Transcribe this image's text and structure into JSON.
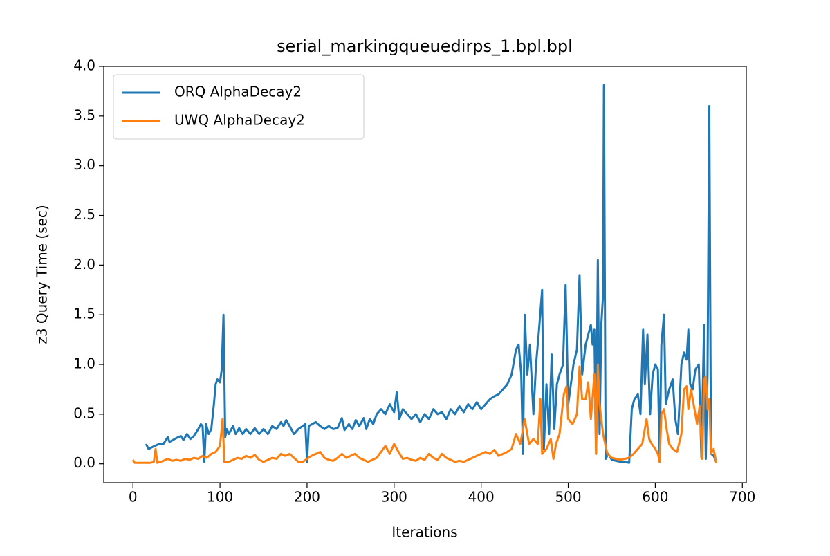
{
  "chart_data": {
    "type": "line",
    "title": "serial_markingqueuedirps_1.bpl.bpl",
    "x_label": "Iterations",
    "y_label": "z3 Query Time (sec)",
    "xlim": [
      -33.55,
      704.55
    ],
    "ylim": [
      -0.19,
      4.0
    ],
    "xticks": [
      0,
      100,
      200,
      300,
      400,
      500,
      600,
      700
    ],
    "yticks": [
      {
        "value": 0,
        "label": "0.0"
      },
      0.5,
      {
        "value": 1,
        "label": "1.0"
      },
      1.5,
      {
        "value": 2,
        "label": "2.0"
      },
      2.5,
      {
        "value": 3,
        "label": "3.0"
      },
      3.5,
      {
        "value": 4,
        "label": "4.0"
      }
    ],
    "legend": "upper left",
    "series": [
      {
        "name": "ORQ AlphaDecay2",
        "color": "#1f77b4",
        "x": [
          15,
          18,
          25,
          30,
          35,
          40,
          42,
          50,
          55,
          58,
          62,
          66,
          70,
          75,
          78,
          80,
          82,
          84,
          87,
          90,
          93,
          95,
          97,
          100,
          102,
          104,
          106,
          108,
          110,
          115,
          118,
          122,
          126,
          130,
          135,
          140,
          145,
          150,
          155,
          160,
          165,
          170,
          173,
          176,
          180,
          185,
          190,
          195,
          198,
          200,
          202,
          206,
          210,
          215,
          220,
          225,
          230,
          235,
          240,
          243,
          248,
          252,
          256,
          260,
          265,
          268,
          272,
          276,
          280,
          285,
          290,
          295,
          300,
          303,
          306,
          310,
          315,
          320,
          325,
          330,
          335,
          340,
          345,
          350,
          355,
          360,
          365,
          370,
          375,
          380,
          385,
          390,
          395,
          400,
          405,
          410,
          415,
          420,
          425,
          430,
          435,
          440,
          443,
          446,
          448,
          450,
          453,
          456,
          460,
          463,
          466,
          470,
          472,
          475,
          478,
          481,
          484,
          487,
          490,
          494,
          497,
          500,
          503,
          506,
          510,
          513,
          516,
          520,
          523,
          526,
          528,
          530,
          532,
          534,
          536,
          538,
          540,
          541,
          543,
          546,
          550,
          555,
          560,
          565,
          570,
          573,
          576,
          580,
          583,
          586,
          588,
          591,
          594,
          597,
          600,
          603,
          605,
          607,
          610,
          612,
          616,
          620,
          623,
          626,
          630,
          633,
          636,
          638,
          640,
          643,
          646,
          650,
          653,
          656,
          658,
          660,
          662,
          664,
          667,
          670
        ],
        "values": [
          0.2,
          0.15,
          0.18,
          0.2,
          0.2,
          0.27,
          0.22,
          0.26,
          0.28,
          0.24,
          0.3,
          0.25,
          0.28,
          0.35,
          0.4,
          0.38,
          0.02,
          0.4,
          0.3,
          0.35,
          0.6,
          0.8,
          0.85,
          0.82,
          0.95,
          1.5,
          0.27,
          0.35,
          0.3,
          0.38,
          0.3,
          0.36,
          0.3,
          0.35,
          0.3,
          0.36,
          0.3,
          0.35,
          0.3,
          0.38,
          0.35,
          0.42,
          0.38,
          0.44,
          0.38,
          0.3,
          0.35,
          0.38,
          0.4,
          0.02,
          0.38,
          0.4,
          0.42,
          0.38,
          0.35,
          0.38,
          0.35,
          0.36,
          0.46,
          0.34,
          0.4,
          0.35,
          0.44,
          0.38,
          0.46,
          0.35,
          0.45,
          0.4,
          0.5,
          0.55,
          0.5,
          0.6,
          0.52,
          0.72,
          0.45,
          0.55,
          0.5,
          0.45,
          0.5,
          0.42,
          0.5,
          0.45,
          0.55,
          0.5,
          0.52,
          0.45,
          0.55,
          0.5,
          0.58,
          0.52,
          0.6,
          0.55,
          0.62,
          0.55,
          0.6,
          0.65,
          0.68,
          0.7,
          0.75,
          0.8,
          0.9,
          1.15,
          1.2,
          0.9,
          0.1,
          1.5,
          0.9,
          1.2,
          0.5,
          1.0,
          1.3,
          1.75,
          0.15,
          0.8,
          0.3,
          1.1,
          0.35,
          0.8,
          0.9,
          1.0,
          1.8,
          0.6,
          0.8,
          1.0,
          1.15,
          1.9,
          0.9,
          1.2,
          1.3,
          1.4,
          1.2,
          1.35,
          0.1,
          2.05,
          0.3,
          1.4,
          1.7,
          3.81,
          0.05,
          0.1,
          0.04,
          0.03,
          0.02,
          0.02,
          0.01,
          0.55,
          0.65,
          0.7,
          0.5,
          1.35,
          0.8,
          1.3,
          0.5,
          0.9,
          1.0,
          0.95,
          0.02,
          1.2,
          1.5,
          0.6,
          0.75,
          0.85,
          0.45,
          0.3,
          1.0,
          1.12,
          1.05,
          1.35,
          0.8,
          0.75,
          0.95,
          1.0,
          0.06,
          1.4,
          0.05,
          0.9,
          3.6,
          0.1,
          0.08,
          0.02
        ]
      },
      {
        "name": "UWQ AlphaDecay2",
        "color": "#ff7f0e",
        "x": [
          0,
          2,
          10,
          20,
          24,
          26,
          28,
          35,
          40,
          45,
          50,
          55,
          60,
          65,
          70,
          75,
          80,
          85,
          90,
          95,
          100,
          103,
          105,
          110,
          115,
          120,
          125,
          130,
          135,
          140,
          145,
          150,
          155,
          160,
          165,
          170,
          175,
          180,
          185,
          190,
          195,
          200,
          205,
          210,
          215,
          220,
          225,
          230,
          235,
          240,
          245,
          250,
          255,
          260,
          265,
          270,
          275,
          280,
          285,
          290,
          295,
          300,
          305,
          310,
          315,
          320,
          325,
          330,
          335,
          340,
          345,
          350,
          355,
          360,
          365,
          370,
          375,
          380,
          385,
          390,
          395,
          400,
          405,
          410,
          415,
          420,
          425,
          430,
          435,
          440,
          445,
          450,
          455,
          460,
          465,
          468,
          470,
          475,
          480,
          483,
          486,
          490,
          495,
          498,
          500,
          505,
          510,
          513,
          516,
          520,
          523,
          526,
          530,
          532,
          534,
          536,
          540,
          545,
          550,
          555,
          560,
          565,
          570,
          575,
          580,
          585,
          590,
          593,
          596,
          600,
          603,
          605,
          607,
          610,
          613,
          616,
          620,
          625,
          630,
          633,
          636,
          638,
          641,
          645,
          648,
          651,
          654,
          656,
          658,
          660,
          662,
          664,
          667,
          670
        ],
        "values": [
          0.04,
          0.01,
          0.01,
          0.01,
          0.02,
          0.15,
          0.01,
          0.03,
          0.05,
          0.03,
          0.04,
          0.03,
          0.05,
          0.04,
          0.06,
          0.05,
          0.08,
          0.06,
          0.1,
          0.12,
          0.18,
          0.45,
          0.02,
          0.02,
          0.04,
          0.06,
          0.05,
          0.08,
          0.06,
          0.09,
          0.04,
          0.02,
          0.04,
          0.06,
          0.05,
          0.1,
          0.08,
          0.1,
          0.06,
          0.02,
          0.02,
          0.05,
          0.08,
          0.1,
          0.12,
          0.06,
          0.04,
          0.03,
          0.06,
          0.1,
          0.06,
          0.08,
          0.1,
          0.06,
          0.04,
          0.02,
          0.04,
          0.06,
          0.12,
          0.18,
          0.1,
          0.2,
          0.12,
          0.05,
          0.06,
          0.04,
          0.03,
          0.06,
          0.04,
          0.1,
          0.06,
          0.04,
          0.1,
          0.06,
          0.04,
          0.02,
          0.03,
          0.02,
          0.04,
          0.06,
          0.08,
          0.1,
          0.12,
          0.1,
          0.14,
          0.08,
          0.1,
          0.12,
          0.15,
          0.3,
          0.2,
          0.45,
          0.2,
          0.25,
          0.2,
          0.65,
          0.1,
          0.15,
          0.25,
          0.05,
          0.2,
          0.3,
          0.7,
          0.78,
          0.45,
          0.4,
          0.5,
          0.98,
          0.65,
          0.65,
          0.82,
          0.45,
          0.9,
          0.1,
          1.0,
          0.6,
          0.3,
          0.1,
          0.06,
          0.05,
          0.04,
          0.05,
          0.06,
          0.1,
          0.15,
          0.2,
          0.45,
          0.25,
          0.2,
          0.15,
          0.1,
          0.02,
          0.5,
          0.55,
          0.35,
          0.2,
          0.15,
          0.12,
          0.3,
          0.75,
          0.78,
          0.55,
          0.75,
          0.55,
          0.4,
          0.58,
          0.05,
          0.85,
          0.88,
          0.55,
          0.65,
          0.1,
          0.15,
          0.01
        ]
      }
    ]
  }
}
